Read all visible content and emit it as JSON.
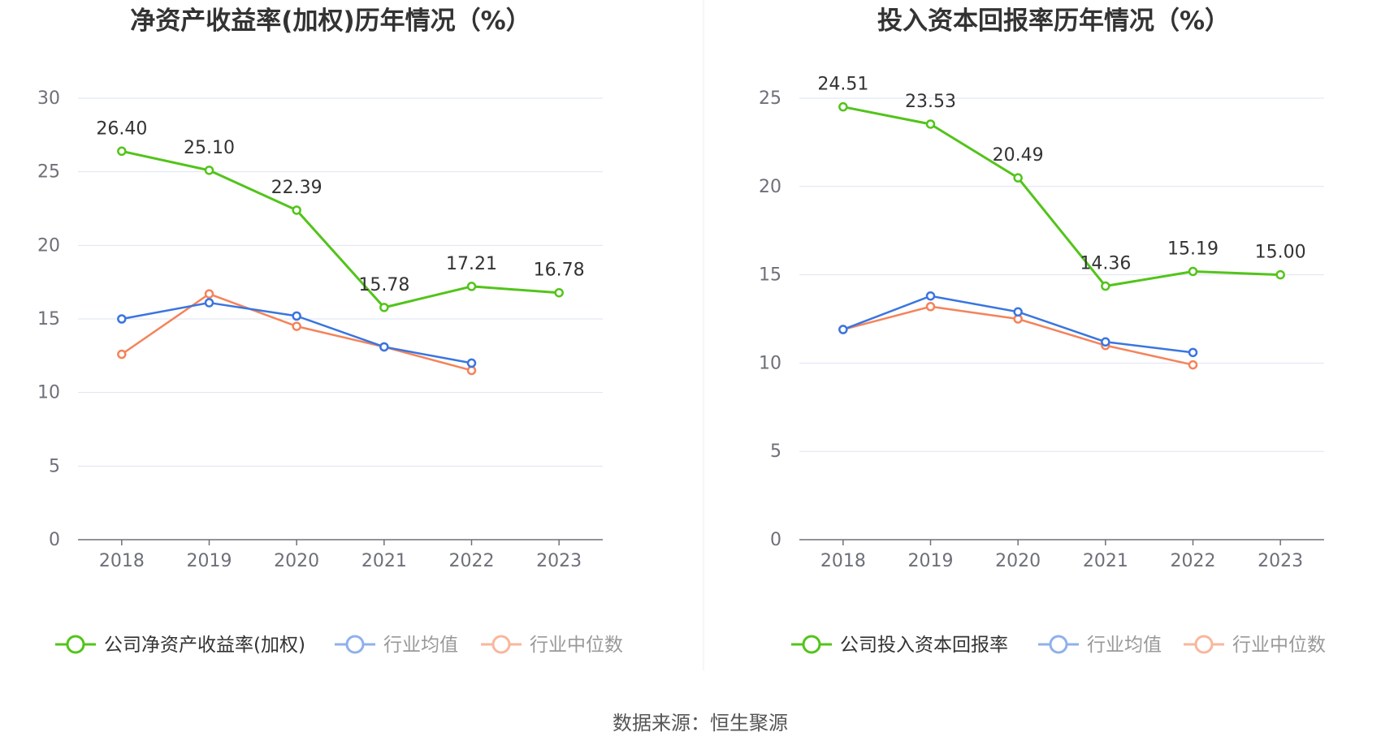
{
  "colors": {
    "company": "#52c41a",
    "avg": "#3a75e0",
    "median": "#f4835a",
    "avg_legend": "#8fb0ec",
    "median_legend": "#f8b69d",
    "grid": "#dfe3f2",
    "axis": "#6e7079"
  },
  "source": "数据来源：恒生聚源",
  "chart_data": [
    {
      "type": "line",
      "title": "净资产收益率(加权)历年情况（%）",
      "categories": [
        "2018",
        "2019",
        "2020",
        "2021",
        "2022",
        "2023"
      ],
      "ylim": [
        0,
        30
      ],
      "yticks": [
        0,
        5,
        10,
        15,
        20,
        25,
        30
      ],
      "series": [
        {
          "key": "company",
          "name": "公司净资产收益率(加权)",
          "values": [
            26.4,
            25.1,
            22.39,
            15.78,
            17.21,
            16.78
          ],
          "labels": [
            "26.40",
            "25.10",
            "22.39",
            "15.78",
            "17.21",
            "16.78"
          ]
        },
        {
          "key": "avg",
          "name": "行业均值",
          "values": [
            15.0,
            16.1,
            15.2,
            13.1,
            12.0,
            null
          ]
        },
        {
          "key": "median",
          "name": "行业中位数",
          "values": [
            12.6,
            16.7,
            14.5,
            13.1,
            11.5,
            null
          ]
        }
      ]
    },
    {
      "type": "line",
      "title": "投入资本回报率历年情况（%）",
      "categories": [
        "2018",
        "2019",
        "2020",
        "2021",
        "2022",
        "2023"
      ],
      "ylim": [
        0,
        25
      ],
      "yticks": [
        0,
        5,
        10,
        15,
        20,
        25
      ],
      "series": [
        {
          "key": "company",
          "name": "公司投入资本回报率",
          "values": [
            24.51,
            23.53,
            20.49,
            14.36,
            15.19,
            15.0
          ],
          "labels": [
            "24.51",
            "23.53",
            "20.49",
            "14.36",
            "15.19",
            "15.00"
          ]
        },
        {
          "key": "avg",
          "name": "行业均值",
          "values": [
            11.9,
            13.8,
            12.9,
            11.2,
            10.6,
            null
          ]
        },
        {
          "key": "median",
          "name": "行业中位数",
          "values": [
            11.9,
            13.2,
            12.5,
            11.0,
            9.9,
            null
          ]
        }
      ]
    }
  ]
}
